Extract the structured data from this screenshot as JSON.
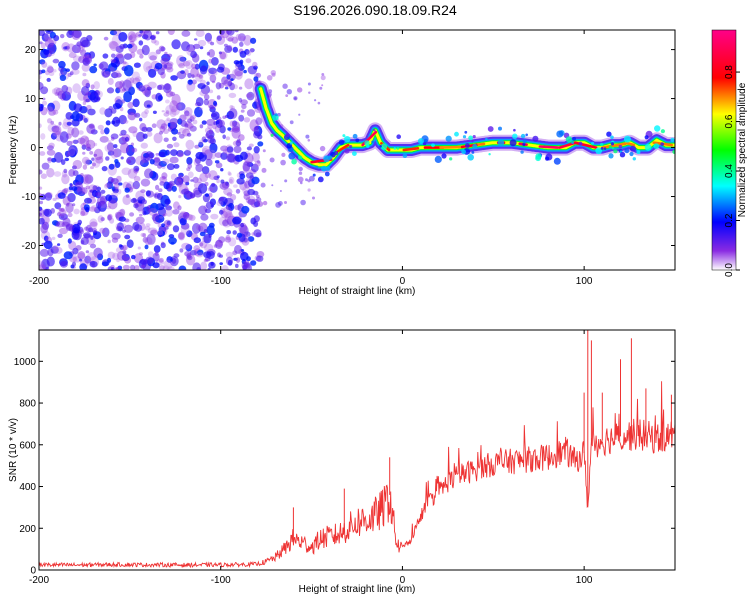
{
  "title": "S196.2026.090.18.09.R24",
  "chart_data": [
    {
      "type": "heatmap",
      "xlabel": "Height of straight line (km)",
      "ylabel": "Frequency (Hz)",
      "xlim": [
        -200,
        150
      ],
      "ylim": [
        -25,
        24
      ],
      "xticks": [
        -200,
        -100,
        0,
        100
      ],
      "yticks": [
        -20,
        -10,
        0,
        10,
        20
      ],
      "colorbar": {
        "label": "Normalized spectral amplitude",
        "range": [
          0,
          0.97
        ],
        "ticks": [
          "0.0",
          "0.2",
          "0.4",
          "0.6",
          "0.8"
        ],
        "tick_values": [
          0,
          0.2,
          0.4,
          0.6,
          0.8
        ]
      },
      "noise_region": {
        "x_range": [
          -200,
          -78
        ],
        "y_range": [
          -25,
          24
        ],
        "amplitude_range": [
          0.0,
          0.2
        ]
      },
      "ridge": [
        {
          "x": -78,
          "y": 12
        },
        {
          "x": -75,
          "y": 8
        },
        {
          "x": -72,
          "y": 5
        },
        {
          "x": -69,
          "y": 3.5
        },
        {
          "x": -66,
          "y": 2.5
        },
        {
          "x": -62,
          "y": 1
        },
        {
          "x": -58,
          "y": -0.5
        },
        {
          "x": -54,
          "y": -2
        },
        {
          "x": -50,
          "y": -3
        },
        {
          "x": -46,
          "y": -3.5
        },
        {
          "x": -42,
          "y": -3.5
        },
        {
          "x": -38,
          "y": -2
        },
        {
          "x": -34,
          "y": 0
        },
        {
          "x": -30,
          "y": 0.5
        },
        {
          "x": -26,
          "y": 0.5
        },
        {
          "x": -22,
          "y": 0.5
        },
        {
          "x": -18,
          "y": 1
        },
        {
          "x": -15,
          "y": 3.5
        },
        {
          "x": -12,
          "y": 1
        },
        {
          "x": -8,
          "y": -0.5
        },
        {
          "x": -4,
          "y": -0.5
        },
        {
          "x": 0,
          "y": -0.5
        },
        {
          "x": 5,
          "y": -0.5
        },
        {
          "x": 10,
          "y": 0
        },
        {
          "x": 20,
          "y": 0
        },
        {
          "x": 30,
          "y": 0
        },
        {
          "x": 40,
          "y": 0.5
        },
        {
          "x": 50,
          "y": 1
        },
        {
          "x": 60,
          "y": 1
        },
        {
          "x": 70,
          "y": 0.5
        },
        {
          "x": 80,
          "y": 0
        },
        {
          "x": 90,
          "y": 0
        },
        {
          "x": 95,
          "y": 1
        },
        {
          "x": 100,
          "y": 1
        },
        {
          "x": 105,
          "y": 0
        },
        {
          "x": 110,
          "y": 0
        },
        {
          "x": 115,
          "y": 0.5
        },
        {
          "x": 120,
          "y": 0.5
        },
        {
          "x": 125,
          "y": 1
        },
        {
          "x": 130,
          "y": 0
        },
        {
          "x": 135,
          "y": 0
        },
        {
          "x": 140,
          "y": 1.5
        },
        {
          "x": 145,
          "y": 0.5
        },
        {
          "x": 150,
          "y": 0.5
        }
      ],
      "ridge_peak_amplitude": 0.95
    },
    {
      "type": "line",
      "xlabel": "Height of straight line (km)",
      "ylabel": "SNR (10 * v/v)",
      "xlim": [
        -200,
        150
      ],
      "ylim": [
        0,
        1150
      ],
      "xticks": [
        -200,
        -100,
        0,
        100
      ],
      "yticks": [
        0,
        200,
        400,
        600,
        800,
        1000
      ],
      "series": [
        {
          "name": "SNR",
          "color": "#ee3333",
          "x": [
            -200,
            -180,
            -160,
            -140,
            -120,
            -100,
            -90,
            -80,
            -75,
            -70,
            -65,
            -60,
            -55,
            -50,
            -45,
            -40,
            -35,
            -30,
            -25,
            -20,
            -15,
            -10,
            -7,
            -5,
            -3,
            0,
            5,
            10,
            15,
            20,
            25,
            30,
            40,
            50,
            60,
            70,
            80,
            90,
            95,
            100,
            102,
            104,
            110,
            120,
            130,
            140,
            150
          ],
          "values": [
            25,
            24,
            26,
            25,
            24,
            25,
            26,
            28,
            40,
            60,
            100,
            150,
            130,
            110,
            150,
            160,
            170,
            200,
            230,
            240,
            260,
            300,
            360,
            230,
            120,
            100,
            150,
            260,
            330,
            380,
            420,
            450,
            480,
            510,
            520,
            530,
            540,
            570,
            520,
            560,
            300,
            600,
            620,
            640,
            650,
            630,
            650
          ],
          "spikes": [
            {
              "x": -60,
              "value": 300
            },
            {
              "x": -32,
              "value": 390
            },
            {
              "x": -7,
              "value": 540
            },
            {
              "x": 100,
              "value": 850
            },
            {
              "x": 102,
              "value": 1150
            },
            {
              "x": 104,
              "value": 1100
            },
            {
              "x": 110,
              "value": 850
            },
            {
              "x": 120,
              "value": 1010
            },
            {
              "x": 126,
              "value": 1110
            },
            {
              "x": 134,
              "value": 870
            },
            {
              "x": 148,
              "value": 840
            }
          ]
        }
      ]
    }
  ]
}
